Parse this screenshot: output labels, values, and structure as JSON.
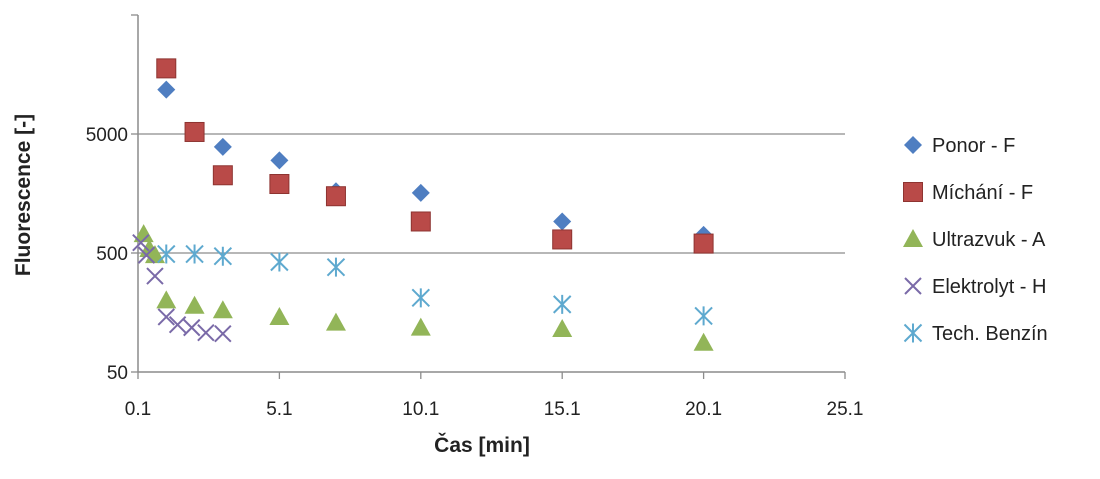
{
  "chart_data": {
    "type": "scatter",
    "xlabel": "Čas [min]",
    "ylabel": "Fluorescence [-]",
    "xlim": [
      0.1,
      25.1
    ],
    "ylim": [
      50,
      50000
    ],
    "yscale": "log",
    "x_ticks": [
      "0.1",
      "5.1",
      "10.1",
      "15.1",
      "20.1",
      "25.1"
    ],
    "y_ticks": [
      "50",
      "500",
      "5000"
    ],
    "y_tick_values": [
      50,
      500,
      5000
    ],
    "grid": "horizontal",
    "legend_position": "right",
    "series": [
      {
        "name": "Ponor - F",
        "marker": "diamond",
        "color": "#4f7ec1",
        "points": [
          [
            1.1,
            11800
          ],
          [
            3.1,
            3900
          ],
          [
            5.1,
            3000
          ],
          [
            7.1,
            1650
          ],
          [
            10.1,
            1600
          ],
          [
            15.1,
            920
          ],
          [
            20.1,
            710
          ]
        ]
      },
      {
        "name": "Míchání - F",
        "marker": "square",
        "color": "#b94a48",
        "points": [
          [
            1.1,
            17800
          ],
          [
            2.1,
            5200
          ],
          [
            3.1,
            2250
          ],
          [
            5.1,
            1900
          ],
          [
            7.1,
            1500
          ],
          [
            10.1,
            920
          ],
          [
            15.1,
            650
          ],
          [
            20.1,
            600
          ]
        ]
      },
      {
        "name": "Ultrazvuk - A",
        "marker": "triangle",
        "color": "#92b558",
        "points": [
          [
            0.3,
            720
          ],
          [
            0.5,
            540
          ],
          [
            0.7,
            480
          ],
          [
            1.1,
            200
          ],
          [
            2.1,
            180
          ],
          [
            3.1,
            165
          ],
          [
            5.1,
            145
          ],
          [
            7.1,
            130
          ],
          [
            10.1,
            118
          ],
          [
            15.1,
            115
          ],
          [
            20.1,
            88
          ]
        ]
      },
      {
        "name": "Elektrolyt - H",
        "marker": "x",
        "color": "#7a6aa8",
        "points": [
          [
            0.2,
            610
          ],
          [
            0.4,
            480
          ],
          [
            0.7,
            320
          ],
          [
            1.1,
            145
          ],
          [
            1.5,
            125
          ],
          [
            2.0,
            118
          ],
          [
            2.5,
            107
          ],
          [
            3.1,
            105
          ]
        ]
      },
      {
        "name": "Tech. Benzín",
        "marker": "asterisk",
        "color": "#5ea9cf",
        "points": [
          [
            1.1,
            490
          ],
          [
            2.1,
            490
          ],
          [
            3.1,
            470
          ],
          [
            5.1,
            420
          ],
          [
            7.1,
            380
          ],
          [
            10.1,
            210
          ],
          [
            15.1,
            185
          ],
          [
            20.1,
            148
          ]
        ]
      }
    ]
  }
}
